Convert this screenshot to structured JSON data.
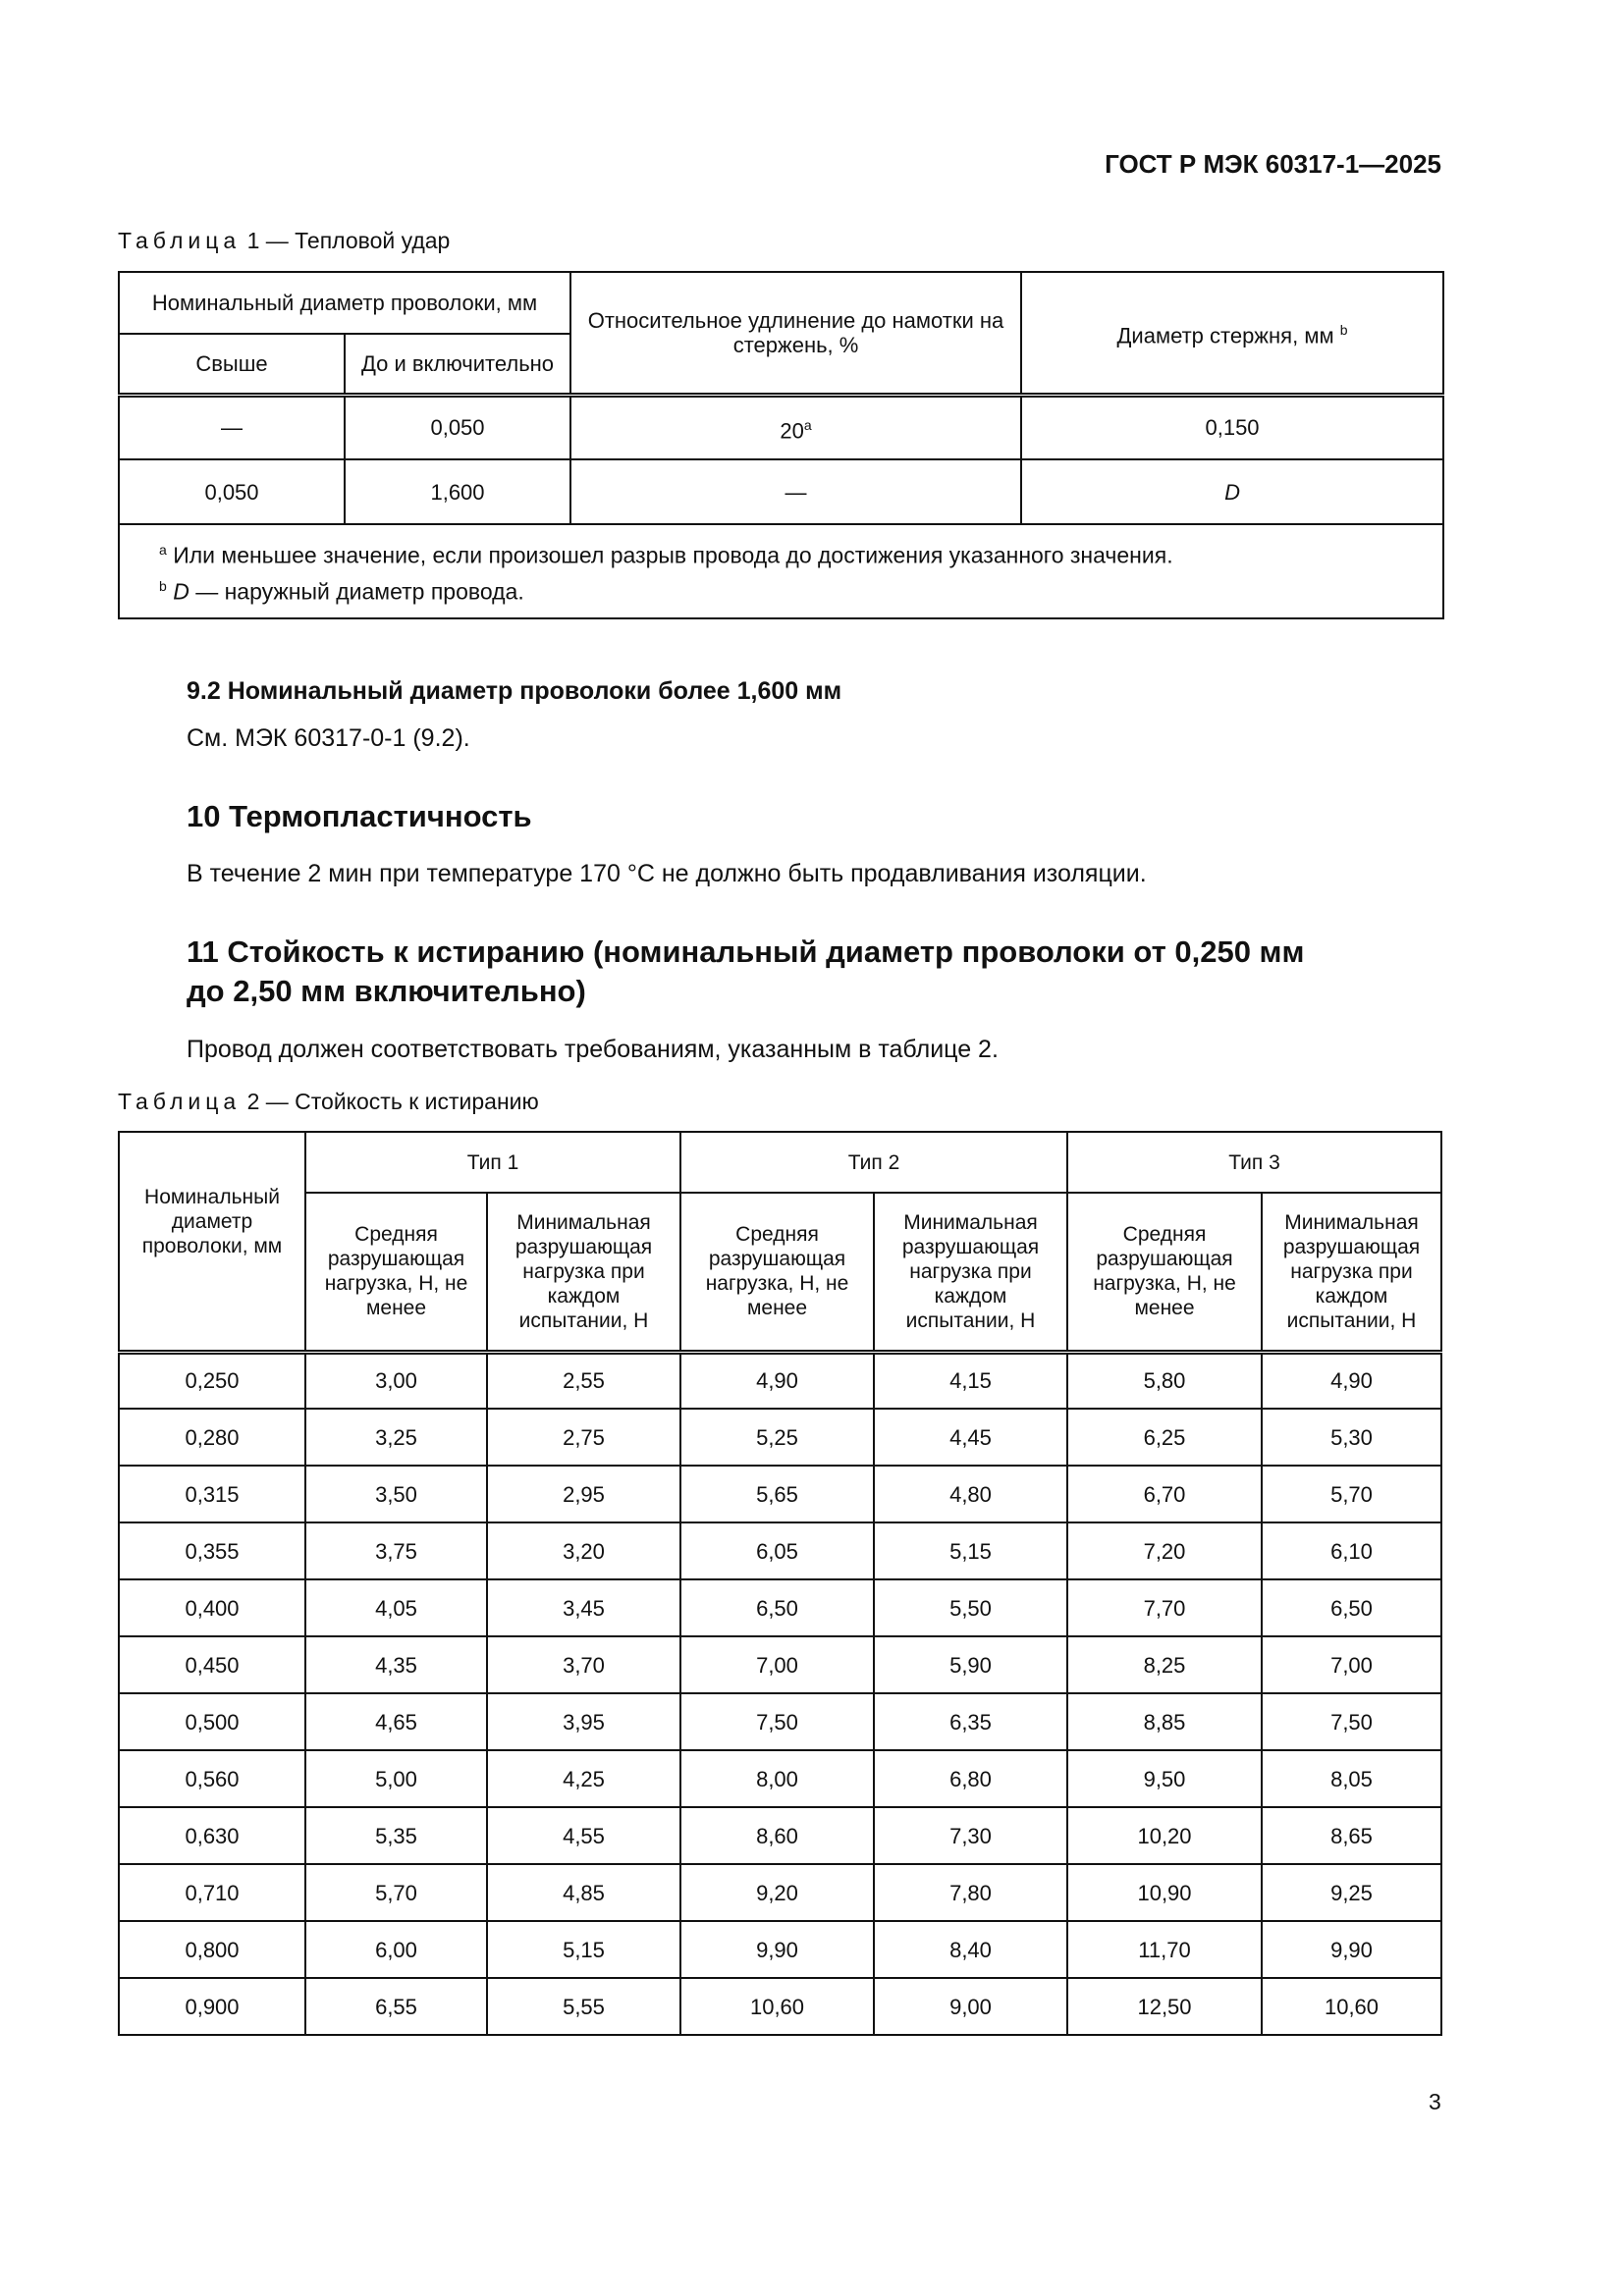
{
  "header": {
    "doc_id": "ГОСТ Р МЭК 60317-1—2025"
  },
  "table1": {
    "caption_word": "Таблица",
    "caption_rest": " 1 — Тепловой удар",
    "col_group": "Номинальный диаметр проволоки, мм",
    "col_over": "Свыше",
    "col_upto": "До и включительно",
    "col_elong": "Относительное удлинение до намотки на стержень, %",
    "col_mandrel": "Диаметр стержня, мм",
    "col_mandrel_note": "b",
    "rows": [
      {
        "over": "—",
        "upto": "0,050",
        "elong": "20",
        "elong_note": "a",
        "mandrel": "0,150"
      },
      {
        "over": "0,050",
        "upto": "1,600",
        "elong": "—",
        "mandrel": "D"
      }
    ],
    "footnotes": [
      {
        "mark": "a",
        "text": "Или меньшее значение, если произошел разрыв провода до достижения указанного значения."
      },
      {
        "mark": "b",
        "italic": "D",
        "text": " — наружный диаметр провода."
      }
    ]
  },
  "sec92": {
    "heading": "9.2 Номинальный диаметр проволоки более 1,600 мм",
    "text": "См. МЭК 60317-0-1 (9.2)."
  },
  "sec10": {
    "heading": "10 Термопластичность",
    "text": "В течение 2 мин при температуре 170 °C не должно быть продавливания изоляции."
  },
  "sec11": {
    "heading_line1": "11 Стойкость к истиранию (номинальный диаметр проволоки от 0,250 мм",
    "heading_line2": "до 2,50  мм включительно)",
    "text": "Провод должен соответствовать требованиям, указанным в таблице 2."
  },
  "table2": {
    "caption_word": "Таблица",
    "caption_rest": " 2 — Стойкость к истиранию",
    "col_diam": "Номинальный диаметр проволоки, мм",
    "types": [
      "Тип 1",
      "Тип 2",
      "Тип 3"
    ],
    "sub_avg": "Средняя разрушающая нагрузка, Н, не  менее",
    "sub_min": "Минимальная разрушающая нагрузка при каждом испытании, Н",
    "rows": [
      [
        "0,250",
        "3,00",
        "2,55",
        "4,90",
        "4,15",
        "5,80",
        "4,90"
      ],
      [
        "0,280",
        "3,25",
        "2,75",
        "5,25",
        "4,45",
        "6,25",
        "5,30"
      ],
      [
        "0,315",
        "3,50",
        "2,95",
        "5,65",
        "4,80",
        "6,70",
        "5,70"
      ],
      [
        "0,355",
        "3,75",
        "3,20",
        "6,05",
        "5,15",
        "7,20",
        "6,10"
      ],
      [
        "0,400",
        "4,05",
        "3,45",
        "6,50",
        "5,50",
        "7,70",
        "6,50"
      ],
      [
        "0,450",
        "4,35",
        "3,70",
        "7,00",
        "5,90",
        "8,25",
        "7,00"
      ],
      [
        "0,500",
        "4,65",
        "3,95",
        "7,50",
        "6,35",
        "8,85",
        "7,50"
      ],
      [
        "0,560",
        "5,00",
        "4,25",
        "8,00",
        "6,80",
        "9,50",
        "8,05"
      ],
      [
        "0,630",
        "5,35",
        "4,55",
        "8,60",
        "7,30",
        "10,20",
        "8,65"
      ],
      [
        "0,710",
        "5,70",
        "4,85",
        "9,20",
        "7,80",
        "10,90",
        "9,25"
      ],
      [
        "0,800",
        "6,00",
        "5,15",
        "9,90",
        "8,40",
        "11,70",
        "9,90"
      ],
      [
        "0,900",
        "6,55",
        "5,55",
        "10,60",
        "9,00",
        "12,50",
        "10,60"
      ]
    ]
  },
  "page_number": "3"
}
